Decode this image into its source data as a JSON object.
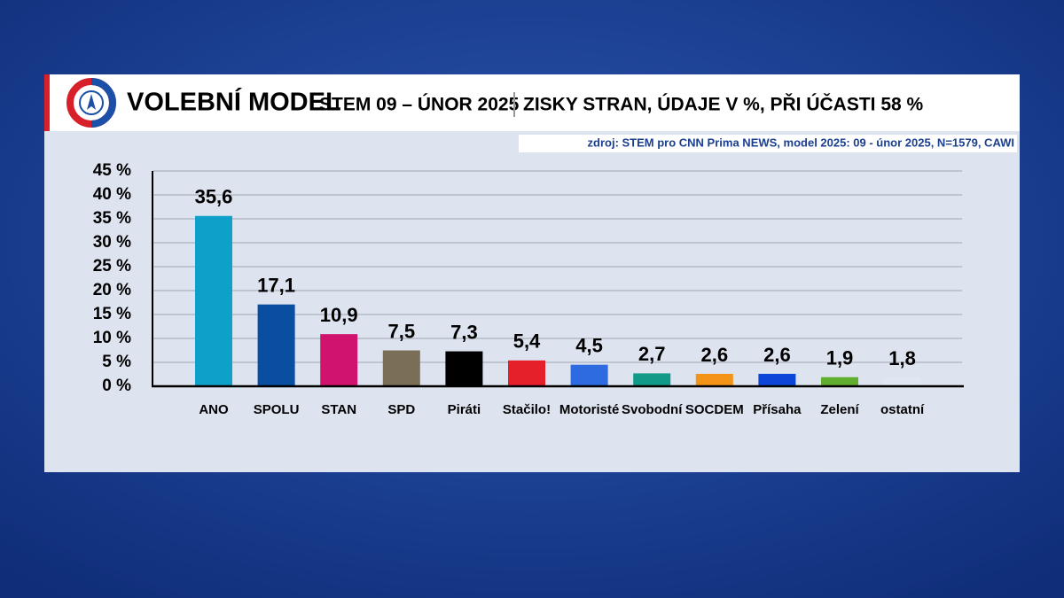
{
  "chart_data": {
    "type": "bar",
    "title": "VOLEBNÍ MODEL",
    "subtitle": "STEM 09 – ÚNOR 2025",
    "description": "ZISKY STRAN, ÚDAJE V %, PŘI ÚČASTI 58 %",
    "source": "zdroj: STEM pro CNN Prima NEWS, model 2025: 09 - únor 2025, N=1579, CAWI",
    "categories": [
      "ANO",
      "SPOLU",
      "STAN",
      "SPD",
      "Piráti",
      "Stačilo!",
      "Motoristé",
      "Svobodní",
      "SOCDEM",
      "Přísaha",
      "Zelení",
      "ostatní"
    ],
    "values": [
      35.6,
      17.1,
      10.9,
      7.5,
      7.3,
      5.4,
      4.5,
      2.7,
      2.6,
      2.6,
      1.9,
      1.8
    ],
    "value_labels": [
      "35,6",
      "17,1",
      "10,9",
      "7,5",
      "7,3",
      "5,4",
      "4,5",
      "2,7",
      "2,6",
      "2,6",
      "1,9",
      "1,8"
    ],
    "colors": [
      "#0ea0c8",
      "#0a4ea2",
      "#d0146e",
      "#7b6e57",
      "#000000",
      "#e5202a",
      "#2e6ae0",
      "#109a88",
      "#f39418",
      "#0b46d8",
      "#5fae2e",
      "#dfe7f2"
    ],
    "ylim": [
      0,
      45
    ],
    "yticks": [
      {
        "value": 0,
        "label": "0 %"
      },
      {
        "value": 5,
        "label": "5 %"
      },
      {
        "value": 10,
        "label": "10 %"
      },
      {
        "value": 15,
        "label": "15 %"
      },
      {
        "value": 20,
        "label": "20 %"
      },
      {
        "value": 25,
        "label": "25 %"
      },
      {
        "value": 30,
        "label": "30 %"
      },
      {
        "value": 35,
        "label": "35 %"
      },
      {
        "value": 40,
        "label": "40 %"
      },
      {
        "value": 45,
        "label": "45 %"
      }
    ],
    "grid": true
  }
}
